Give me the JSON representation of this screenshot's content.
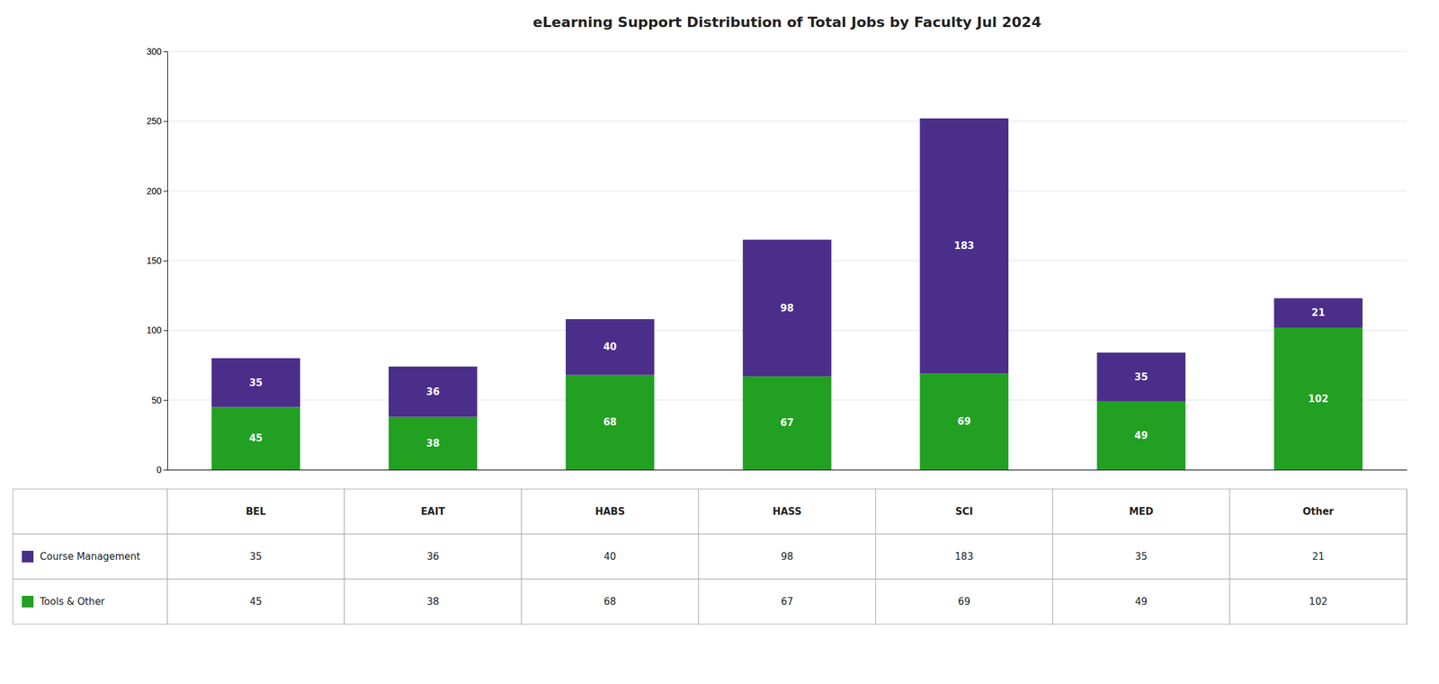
{
  "chart_data": {
    "type": "bar",
    "title": "eLearning Support Distribution of Total Jobs by Faculty Jul 2024",
    "categories": [
      "BEL",
      "EAIT",
      "HABS",
      "HASS",
      "SCI",
      "MED",
      "Other"
    ],
    "series": [
      {
        "name": "Tools & Other",
        "color": "#22A022",
        "values": [
          45,
          38,
          68,
          67,
          69,
          49,
          102
        ]
      },
      {
        "name": "Course Management",
        "color": "#4B2E8A",
        "values": [
          35,
          36,
          40,
          98,
          183,
          35,
          21
        ]
      }
    ],
    "stacked": true,
    "data_labels": true,
    "grid": true,
    "tick_labels": "y",
    "ylim": [
      0,
      300
    ],
    "yticks": [
      0,
      50,
      100,
      150,
      200,
      250,
      300
    ]
  }
}
